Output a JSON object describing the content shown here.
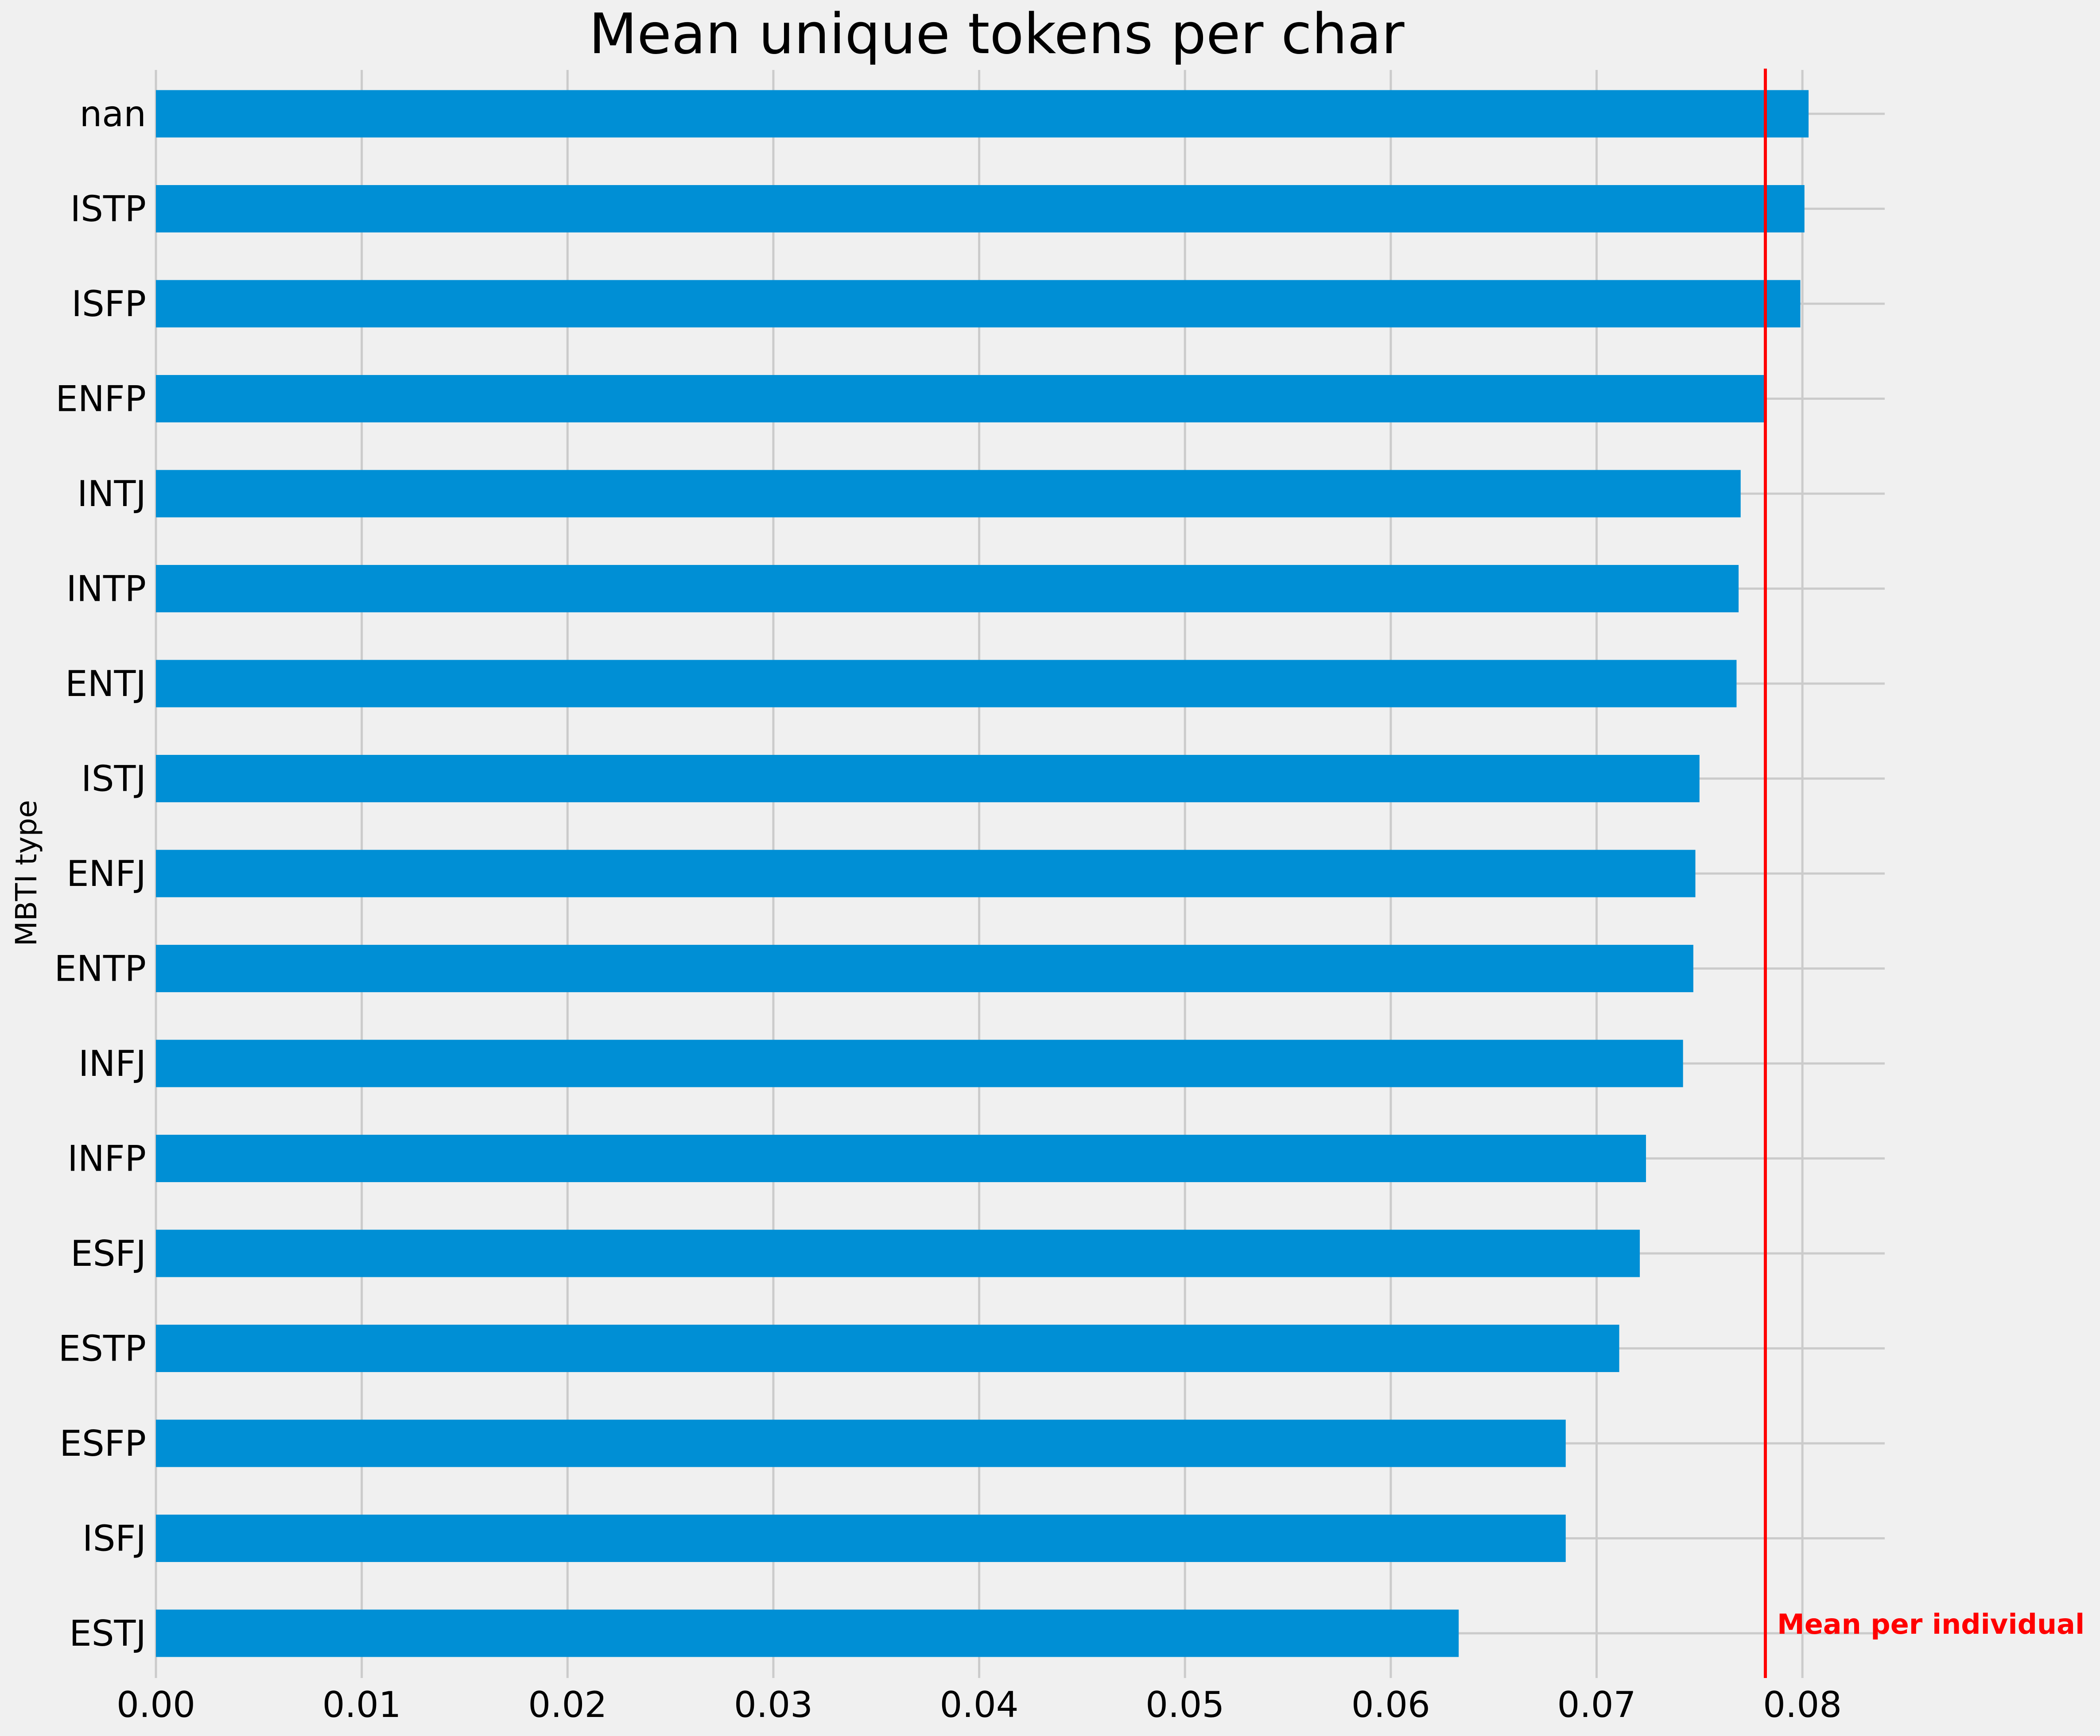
{
  "chart_data": {
    "type": "bar",
    "orientation": "horizontal",
    "title": "Mean unique tokens per char",
    "xlabel": "",
    "ylabel": "MBTI type",
    "categories": [
      "nan",
      "ISTP",
      "ISFP",
      "ENFP",
      "INTJ",
      "INTP",
      "ENTJ",
      "ISTJ",
      "ENFJ",
      "ENTP",
      "INFJ",
      "INFP",
      "ESFJ",
      "ESTP",
      "ESFP",
      "ISFJ",
      "ESTJ"
    ],
    "values": [
      0.0803,
      0.0801,
      0.0799,
      0.0782,
      0.077,
      0.0769,
      0.0768,
      0.075,
      0.0748,
      0.0747,
      0.0742,
      0.0724,
      0.0721,
      0.0711,
      0.0685,
      0.0685,
      0.0633
    ],
    "xlim": [
      0,
      0.084
    ],
    "xticks": [
      "0.00",
      "0.01",
      "0.02",
      "0.03",
      "0.04",
      "0.05",
      "0.06",
      "0.07",
      "0.08"
    ],
    "grid": true,
    "bar_color": "#008fd5",
    "reference_line": {
      "value": 0.0782,
      "label": "Mean per individual",
      "color": "#ff0000"
    }
  }
}
